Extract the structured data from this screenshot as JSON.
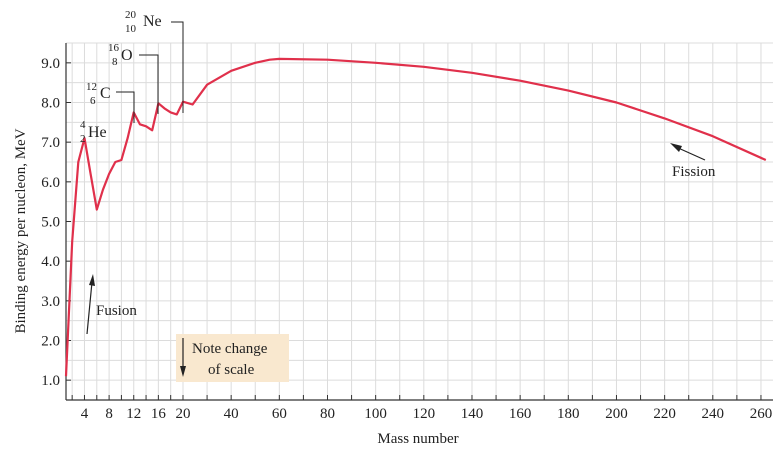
{
  "chart_data": {
    "type": "line",
    "title": "",
    "xlabel": "Mass number",
    "ylabel": "Binding energy per nucleon, MeV",
    "ylim": [
      0.5,
      9.5
    ],
    "grid": true,
    "y_ticks": [
      "1.0",
      "2.0",
      "3.0",
      "4.0",
      "5.0",
      "6.0",
      "7.0",
      "8.0",
      "9.0"
    ],
    "x_ticks_left": [
      "4",
      "8",
      "12",
      "16",
      "20"
    ],
    "x_ticks_right": [
      "20",
      "40",
      "60",
      "80",
      "100",
      "120",
      "140",
      "160",
      "180",
      "200",
      "220",
      "240",
      "260"
    ],
    "curve_color": "#e0304b",
    "series": [
      {
        "name": "",
        "x": [
          1,
          2,
          3,
          4,
          5,
          6,
          7,
          8,
          9,
          10,
          11,
          12,
          13,
          14,
          15,
          16,
          17,
          18,
          19,
          20,
          24,
          30,
          40,
          50,
          56,
          60,
          80,
          100,
          120,
          140,
          160,
          180,
          200,
          220,
          240,
          262
        ],
        "y": [
          1.1,
          4.5,
          6.5,
          7.1,
          6.2,
          5.3,
          5.8,
          6.2,
          6.5,
          6.55,
          7.1,
          7.75,
          7.45,
          7.4,
          7.3,
          7.98,
          7.85,
          7.75,
          7.7,
          8.02,
          7.95,
          8.45,
          8.8,
          9.0,
          9.08,
          9.1,
          9.08,
          9.0,
          8.9,
          8.75,
          8.55,
          8.3,
          8.0,
          7.6,
          7.15,
          6.55
        ]
      }
    ],
    "annotations": {
      "fusion": "Fusion",
      "fission": "Fission",
      "note_line1": "Note change",
      "note_line2": "of scale"
    },
    "isotopes": [
      {
        "sym": "He",
        "mass": "4",
        "z": "2"
      },
      {
        "sym": "C",
        "mass": "12",
        "z": "6"
      },
      {
        "sym": "O",
        "mass": "16",
        "z": "8"
      },
      {
        "sym": "Ne",
        "mass": "20",
        "z": "10"
      }
    ]
  }
}
